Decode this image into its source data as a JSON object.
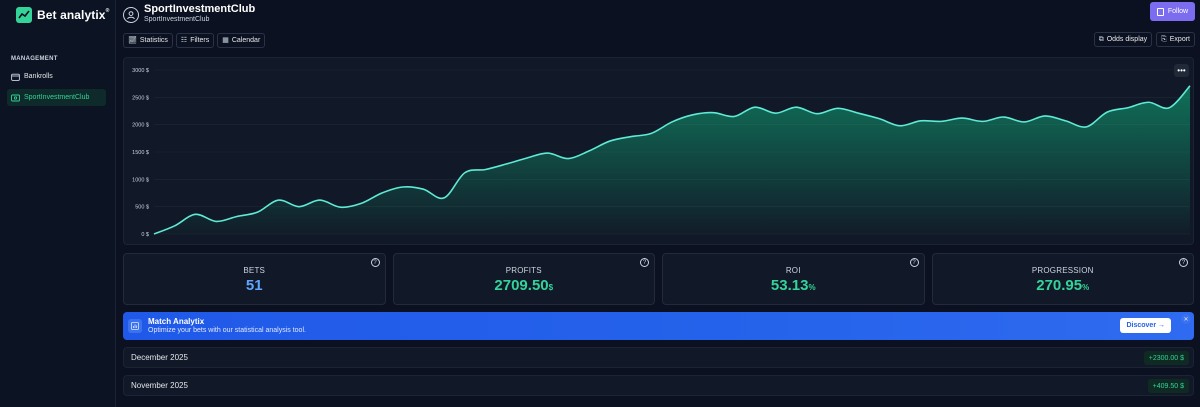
{
  "app": {
    "name": "Bet analytix",
    "trademark": "®"
  },
  "sidebar": {
    "section": "MANAGEMENT",
    "items": [
      {
        "label": "Bankrolls",
        "icon": "wallet-icon",
        "active": false
      },
      {
        "label": "SportInvestmentClub",
        "icon": "bankroll-icon",
        "active": true
      }
    ]
  },
  "header": {
    "title": "SportInvestmentClub",
    "subtitle": "SportInvestmentClub",
    "follow_label": "Follow"
  },
  "toolbar": {
    "statistics_label": "Statistics",
    "filters_label": "Filters",
    "calendar_label": "Calendar",
    "odds_display_label": "Odds display",
    "export_label": "Export"
  },
  "chart_data": {
    "type": "area",
    "yticks": [
      "0 $",
      "500 $",
      "1000 $",
      "1500 $",
      "2000 $",
      "2500 $",
      "3000 $"
    ],
    "ylim": [
      0,
      3000
    ],
    "x": [
      0,
      1,
      2,
      3,
      4,
      5,
      6,
      7,
      8,
      9,
      10,
      11,
      12,
      13,
      14,
      15,
      16,
      17,
      18,
      19,
      20,
      21,
      22,
      23,
      24,
      25,
      26,
      27,
      28,
      29,
      30,
      31,
      32,
      33,
      34,
      35,
      36,
      37,
      38,
      39,
      40,
      41,
      42,
      43,
      44,
      45,
      46,
      47,
      48,
      49,
      50
    ],
    "values": [
      0,
      150,
      360,
      230,
      320,
      400,
      620,
      500,
      620,
      490,
      560,
      750,
      860,
      820,
      660,
      1120,
      1180,
      1280,
      1390,
      1480,
      1380,
      1520,
      1700,
      1780,
      1840,
      2050,
      2180,
      2220,
      2150,
      2320,
      2210,
      2320,
      2200,
      2300,
      2210,
      2110,
      1980,
      2070,
      2060,
      2120,
      2060,
      2140,
      2050,
      2160,
      2070,
      1960,
      2230,
      2310,
      2410,
      2310,
      2710
    ],
    "grid": true,
    "line_color": "#5eead4",
    "fill_color": "#10b981"
  },
  "stats": [
    {
      "label": "BETS",
      "value": "51",
      "unit": "",
      "color": "#60a5fa"
    },
    {
      "label": "PROFITS",
      "value": "2709.50",
      "unit": "$",
      "color": "#34d399"
    },
    {
      "label": "ROI",
      "value": "53.13",
      "unit": "%",
      "color": "#34d399"
    },
    {
      "label": "PROGRESSION",
      "value": "270.95",
      "unit": "%",
      "color": "#34d399"
    }
  ],
  "promo": {
    "title": "Match Analytix",
    "subtitle": "Optimize your bets with our statistical analysis tool.",
    "button_label": "Discover →",
    "close": "✕"
  },
  "months": [
    {
      "label": "December 2025",
      "amount": "+2300.00 $"
    },
    {
      "label": "November 2025",
      "amount": "+409.50 $"
    }
  ]
}
